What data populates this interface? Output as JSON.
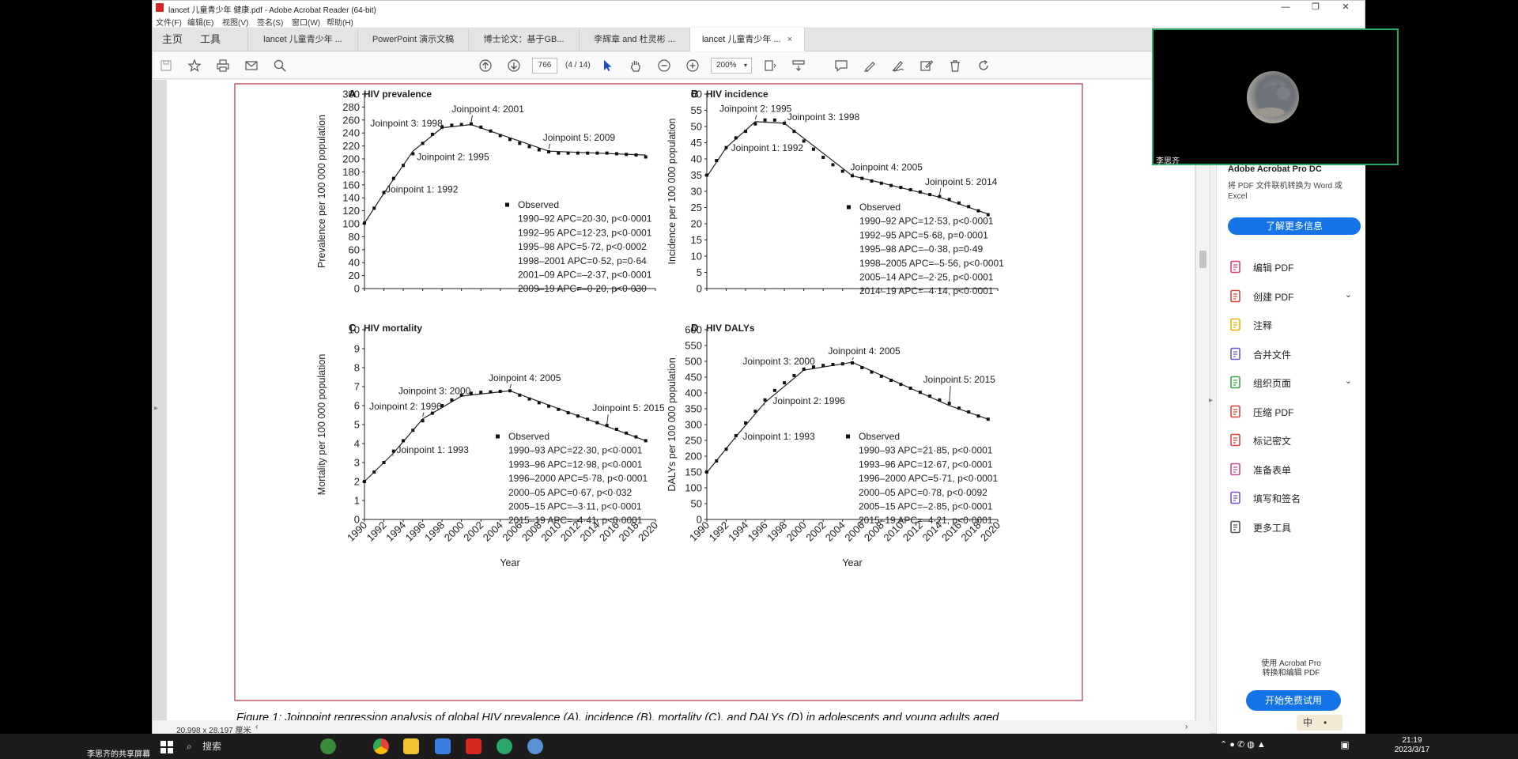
{
  "window": {
    "title": "lancet 儿童青少年 健康.pdf - Adobe Acrobat Reader (64-bit)",
    "menu": [
      "文件(F)",
      "编辑(E)",
      "视图(V)",
      "签名(S)",
      "窗口(W)",
      "帮助(H)"
    ],
    "controls": {
      "minimize": "—",
      "maximize": "❐",
      "close": "✕"
    }
  },
  "tabs": {
    "home": "主页",
    "tools": "工具",
    "docs": [
      {
        "label": "lancet 儿童青少年 ..."
      },
      {
        "label": "PowerPoint 演示文稿"
      },
      {
        "label": "博士论文：基于GB..."
      },
      {
        "label": "李辉章 and 杜灵彬 ..."
      },
      {
        "label": "lancet 儿童青少年 ...",
        "close": "×"
      }
    ]
  },
  "toolbar": {
    "page_number": "766",
    "page_count": "(4 / 14)",
    "zoom": "200%"
  },
  "status": {
    "page_size": "20.998 x 28.197 厘米"
  },
  "right_pane": {
    "promo_title": "Adobe Acrobat Pro DC",
    "promo_text": "将 PDF 文件联机转换为 Word 或 Excel",
    "learn_more": "了解更多信息",
    "tools": [
      {
        "label": "编辑 PDF",
        "icon": "edit-pdf-icon",
        "color": "#e03c6a"
      },
      {
        "label": "创建 PDF",
        "icon": "create-pdf-icon",
        "color": "#e0403a",
        "chevron": "⌄"
      },
      {
        "label": "注释",
        "icon": "comment-icon",
        "color": "#f2b400"
      },
      {
        "label": "合并文件",
        "icon": "combine-icon",
        "color": "#5b5fd6"
      },
      {
        "label": "组织页面",
        "icon": "organize-icon",
        "color": "#3aa64a",
        "chevron": "⌄"
      },
      {
        "label": "压缩 PDF",
        "icon": "compress-icon",
        "color": "#e0403a"
      },
      {
        "label": "标记密文",
        "icon": "redact-icon",
        "color": "#e0403a"
      },
      {
        "label": "准备表单",
        "icon": "form-icon",
        "color": "#c04a9a"
      },
      {
        "label": "填写和签名",
        "icon": "sign-icon",
        "color": "#7b4fd0"
      },
      {
        "label": "更多工具",
        "icon": "more-tools-icon",
        "color": "#555555"
      }
    ],
    "footer_line1": "使用 Acrobat Pro",
    "footer_line2": "转换和编辑 PDF",
    "trial": "开始免费试用"
  },
  "webcam": {
    "name": "李思齐"
  },
  "taskbar": {
    "share_label": "李思齐的共享屏幕",
    "search": "搜索",
    "time": "21:19",
    "date": "2023/3/17",
    "ime": "中"
  },
  "figure": {
    "caption": "Figure 1: Joinpoint regression analysis of global HIV prevalence (A), incidence (B), mortality (C), and DALYs (D) in adolescents and young adults aged",
    "xlabel": "Year",
    "legend_observed": "Observed"
  },
  "chart_data": [
    {
      "type": "line",
      "panel": "A",
      "title": "HIV prevalence",
      "ylabel": "Prevalence per 100 000 population",
      "xlabel": "",
      "xlim": [
        1990,
        2020
      ],
      "ylim": [
        0,
        300
      ],
      "ystep": 20,
      "x_ticks_shown": false,
      "observed_years": [
        1990,
        1991,
        1992,
        1993,
        1994,
        1995,
        1996,
        1997,
        1998,
        1999,
        2000,
        2001,
        2002,
        2003,
        2004,
        2005,
        2006,
        2007,
        2008,
        2009,
        2010,
        2011,
        2012,
        2013,
        2014,
        2015,
        2016,
        2017,
        2018,
        2019
      ],
      "observed": [
        101,
        124,
        148,
        170,
        190,
        208,
        224,
        238,
        249,
        252,
        253,
        254,
        249,
        243,
        236,
        230,
        224,
        219,
        214,
        211,
        209,
        209,
        209,
        209,
        209,
        209,
        208,
        207,
        206,
        203
      ],
      "fit_years": [
        1990,
        1992,
        1995,
        1998,
        2001,
        2009,
        2019
      ],
      "fit": [
        101,
        147,
        212,
        248,
        253,
        212,
        206
      ],
      "joinpoints": [
        {
          "label": "Joinpoint 1: 1992",
          "year": 1992,
          "value": 147,
          "lx": 1992.2,
          "ly": 148
        },
        {
          "label": "Joinpoint 2: 1995",
          "year": 1995,
          "value": 212,
          "lx": 1995.4,
          "ly": 198
        },
        {
          "label": "Joinpoint 3: 1998",
          "year": 1998,
          "value": 248,
          "lx": 1990.6,
          "ly": 250
        },
        {
          "label": "Joinpoint 4: 2001",
          "year": 2001,
          "value": 253,
          "lx": 1999.0,
          "ly": 272
        },
        {
          "label": "Joinpoint 5: 2009",
          "year": 2009,
          "value": 212,
          "lx": 2008.4,
          "ly": 228
        }
      ],
      "legend": [
        "1990–92 APC=20·30, p<0·0001",
        "1992–95 APC=12·23, p<0·0001",
        "1995–98 APC=5·72, p<0·0002",
        "1998–2001 APC=0·52, p=0·64",
        "2001–09 APC=–2·37, p<0·0001",
        "2009–19 APC=–0·20, p<0·030"
      ]
    },
    {
      "type": "line",
      "panel": "B",
      "title": "HIV incidence",
      "ylabel": "Incidence per 100 000 population",
      "xlabel": "",
      "xlim": [
        1990,
        2020
      ],
      "ylim": [
        0,
        60
      ],
      "ystep": 5,
      "x_ticks_shown": false,
      "observed_years": [
        1990,
        1991,
        1992,
        1993,
        1994,
        1995,
        1996,
        1997,
        1998,
        1999,
        2000,
        2001,
        2002,
        2003,
        2004,
        2005,
        2006,
        2007,
        2008,
        2009,
        2010,
        2011,
        2012,
        2013,
        2014,
        2015,
        2016,
        2017,
        2018,
        2019
      ],
      "observed": [
        35,
        39.5,
        43.5,
        46.5,
        48.5,
        50.8,
        52,
        52,
        51,
        48.5,
        45.5,
        43,
        40.5,
        38.2,
        36.2,
        34.8,
        34,
        33.2,
        32.5,
        31.8,
        31.2,
        30.5,
        29.8,
        29,
        28.4,
        27.5,
        26.4,
        25.3,
        24,
        22.8
      ],
      "fit_years": [
        1990,
        1992,
        1995,
        1998,
        2005,
        2014,
        2019
      ],
      "fit": [
        34.5,
        43.5,
        51.5,
        51,
        34.8,
        28.2,
        23
      ],
      "joinpoints": [
        {
          "label": "Joinpoint 1: 1992",
          "year": 1992,
          "value": 43.5,
          "lx": 1992.5,
          "ly": 42.5
        },
        {
          "label": "Joinpoint 2: 1995",
          "year": 1995,
          "value": 51.5,
          "lx": 1991.3,
          "ly": 54.5
        },
        {
          "label": "Joinpoint 3: 1998",
          "year": 1998,
          "value": 51,
          "lx": 1998.3,
          "ly": 52
        },
        {
          "label": "Joinpoint 4: 2005",
          "year": 2005,
          "value": 34.8,
          "lx": 2004.8,
          "ly": 36.5
        },
        {
          "label": "Joinpoint 5: 2014",
          "year": 2014,
          "value": 28.2,
          "lx": 2012.5,
          "ly": 32
        }
      ],
      "legend": [
        "1990–92 APC=12·53, p<0·0001",
        "1992–95 APC=5·68, p=0·0001",
        "1995–98 APC=–0·38, p=0·49",
        "1998–2005 APC=–5·56, p<0·0001",
        "2005–14 APC=–2·25, p<0·0001",
        "2014–19 APC=–4·14, p<0·0001"
      ]
    },
    {
      "type": "line",
      "panel": "C",
      "title": "HIV mortality",
      "ylabel": "Mortality per 100 000 population",
      "xlabel": "Year",
      "xlim": [
        1990,
        2020
      ],
      "ylim": [
        0,
        10
      ],
      "ystep": 1,
      "x_ticks_shown": true,
      "observed_years": [
        1990,
        1991,
        1992,
        1993,
        1994,
        1995,
        1996,
        1997,
        1998,
        1999,
        2000,
        2001,
        2002,
        2003,
        2004,
        2005,
        2006,
        2007,
        2008,
        2009,
        2010,
        2011,
        2012,
        2013,
        2014,
        2015,
        2016,
        2017,
        2018,
        2019
      ],
      "observed": [
        2,
        2.5,
        3,
        3.6,
        4.15,
        4.7,
        5.2,
        5.6,
        6,
        6.3,
        6.55,
        6.65,
        6.7,
        6.72,
        6.75,
        6.78,
        6.55,
        6.35,
        6.15,
        5.97,
        5.8,
        5.62,
        5.45,
        5.28,
        5.1,
        4.95,
        4.75,
        4.55,
        4.35,
        4.15
      ],
      "fit_years": [
        1990,
        1993,
        1996,
        2000,
        2005,
        2015,
        2019
      ],
      "fit": [
        2,
        3.5,
        5.3,
        6.5,
        6.78,
        4.9,
        4.15
      ],
      "joinpoints": [
        {
          "label": "Joinpoint 1: 1993",
          "year": 1993,
          "value": 3.5,
          "lx": 1993.3,
          "ly": 3.5
        },
        {
          "label": "Joinpoint 2: 1996",
          "year": 1996,
          "value": 5.3,
          "lx": 1990.5,
          "ly": 5.8
        },
        {
          "label": "Joinpoint 3: 2000",
          "year": 2000,
          "value": 6.5,
          "lx": 1993.5,
          "ly": 6.6
        },
        {
          "label": "Joinpoint 4: 2005",
          "year": 2005,
          "value": 6.78,
          "lx": 2002.8,
          "ly": 7.3
        },
        {
          "label": "Joinpoint 5: 2015",
          "year": 2015,
          "value": 4.9,
          "lx": 2013.5,
          "ly": 5.7
        }
      ],
      "legend": [
        "1990–93 APC=22·30, p<0·0001",
        "1993–96 APC=12·98, p<0·0001",
        "1996–2000 APC=5·78, p<0·0001",
        "2000–05 APC=0·67, p<0·032",
        "2005–15 APC=–3·11, p<0·0001",
        "2015–19 APC=–4·41, p<0·0001"
      ]
    },
    {
      "type": "line",
      "panel": "D",
      "title": "HIV DALYs",
      "ylabel": "DALYs per 100 000 population",
      "xlabel": "Year",
      "xlim": [
        1990,
        2020
      ],
      "ylim": [
        0,
        600
      ],
      "ystep": 50,
      "x_ticks_shown": true,
      "observed_years": [
        1990,
        1991,
        1992,
        1993,
        1994,
        1995,
        1996,
        1997,
        1998,
        1999,
        2000,
        2001,
        2002,
        2003,
        2004,
        2005,
        2006,
        2007,
        2008,
        2009,
        2010,
        2011,
        2012,
        2013,
        2014,
        2015,
        2016,
        2017,
        2018,
        2019
      ],
      "observed": [
        150,
        185,
        222,
        265,
        305,
        342,
        378,
        408,
        432,
        455,
        475,
        482,
        487,
        490,
        492,
        495,
        480,
        466,
        453,
        440,
        427,
        415,
        402,
        390,
        378,
        367,
        352,
        340,
        327,
        317
      ],
      "fit_years": [
        1990,
        1993,
        1996,
        2000,
        2005,
        2015,
        2019
      ],
      "fit": [
        148,
        262,
        370,
        472,
        497,
        360,
        317
      ],
      "joinpoints": [
        {
          "label": "Joinpoint 1: 1993",
          "year": 1993,
          "value": 262,
          "lx": 1993.7,
          "ly": 252
        },
        {
          "label": "Joinpoint 2: 1996",
          "year": 1996,
          "value": 370,
          "lx": 1996.8,
          "ly": 365
        },
        {
          "label": "Joinpoint 3: 2000",
          "year": 2000,
          "value": 472,
          "lx": 1993.7,
          "ly": 490
        },
        {
          "label": "Joinpoint 4: 2005",
          "year": 2005,
          "value": 497,
          "lx": 2002.5,
          "ly": 522
        },
        {
          "label": "Joinpoint 5: 2015",
          "year": 2015,
          "value": 360,
          "lx": 2012.3,
          "ly": 432
        }
      ],
      "legend": [
        "1990–93 APC=21·85, p<0·0001",
        "1993–96 APC=12·67, p<0·0001",
        "1996–2000 APC=5·71, p<0·0001",
        "2000–05 APC=0·78, p<0·0092",
        "2005–15 APC=–2·85, p<0·0001",
        "2015–19 APC=–4·21, p<0·0001"
      ]
    }
  ]
}
